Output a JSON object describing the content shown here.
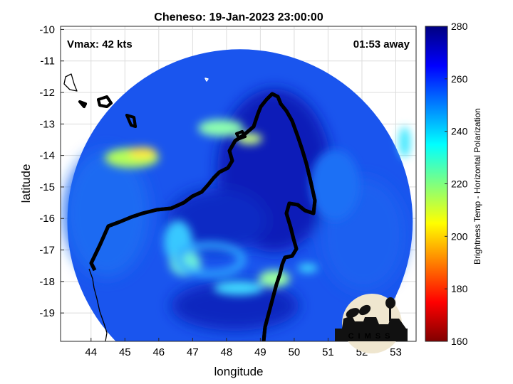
{
  "title": "Cheneso: 19-Jan-2023 23:00:00",
  "annotations": {
    "vmax": "Vmax: 42 kts",
    "away": "01:53 away"
  },
  "xlabel": "longitude",
  "ylabel": "latitude",
  "colorbar": {
    "label": "Brightness Temp - Horizontal Polarization",
    "ticks": [
      "280",
      "260",
      "240",
      "220",
      "200",
      "180",
      "160"
    ]
  },
  "logo_text": "CIMSS",
  "chart_data": {
    "type": "heatmap",
    "title": "Cheneso: 19-Jan-2023 23:00:00",
    "xlabel": "longitude",
    "ylabel": "latitude",
    "xlim": [
      43.1,
      53.6
    ],
    "ylim": [
      -19.9,
      -9.9
    ],
    "x_ticks": [
      "44",
      "45",
      "46",
      "47",
      "48",
      "49",
      "50",
      "51",
      "52",
      "53"
    ],
    "y_ticks": [
      "-10",
      "-11",
      "-12",
      "-13",
      "-14",
      "-15",
      "-16",
      "-17",
      "-18",
      "-19"
    ],
    "color_range": [
      160,
      280
    ],
    "colormap": "jet",
    "grid": true,
    "swath_center": {
      "lon": 48.4,
      "lat": -16.1
    },
    "swath_radius_deg": 5.1
  }
}
